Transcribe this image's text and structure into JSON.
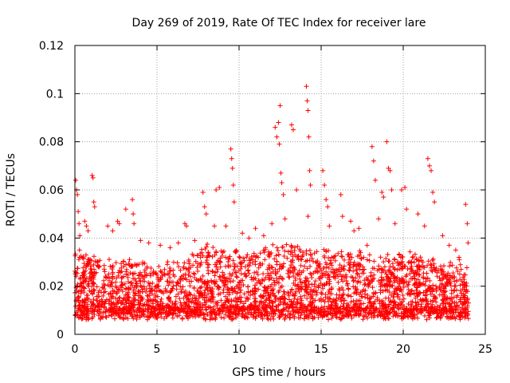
{
  "chart_data": {
    "type": "scatter",
    "title": "Day 269 of 2019, Rate Of TEC Index for receiver lare",
    "xlabel": "GPS time / hours",
    "ylabel": "ROTI / TECUs",
    "xlim": [
      0,
      25
    ],
    "ylim": [
      0,
      0.12
    ],
    "x_ticks": [
      0,
      5,
      10,
      15,
      20,
      25
    ],
    "x_tick_labels": [
      "0",
      "5",
      "10",
      "15",
      "20",
      "25"
    ],
    "y_ticks": [
      0,
      0.02,
      0.04,
      0.06,
      0.08,
      0.1,
      0.12
    ],
    "y_tick_labels": [
      "0",
      "0.02",
      "0.04",
      "0.06",
      "0.08",
      "0.1",
      "0.12"
    ],
    "grid": true,
    "marker": "+",
    "color": "#ff0000",
    "series": [
      {
        "name": "ROTI",
        "points": [
          [
            0.05,
            0.064
          ],
          [
            0.1,
            0.06
          ],
          [
            0.15,
            0.058
          ],
          [
            0.2,
            0.051
          ],
          [
            0.25,
            0.046
          ],
          [
            0.3,
            0.041
          ],
          [
            0.6,
            0.047
          ],
          [
            0.7,
            0.045
          ],
          [
            0.8,
            0.043
          ],
          [
            1.05,
            0.066
          ],
          [
            1.1,
            0.065
          ],
          [
            1.15,
            0.055
          ],
          [
            1.2,
            0.053
          ],
          [
            2.0,
            0.045
          ],
          [
            2.3,
            0.043
          ],
          [
            2.6,
            0.047
          ],
          [
            2.7,
            0.046
          ],
          [
            3.1,
            0.052
          ],
          [
            3.5,
            0.056
          ],
          [
            3.55,
            0.05
          ],
          [
            3.6,
            0.046
          ],
          [
            4.0,
            0.039
          ],
          [
            4.5,
            0.038
          ],
          [
            5.2,
            0.037
          ],
          [
            5.8,
            0.036
          ],
          [
            6.3,
            0.038
          ],
          [
            6.7,
            0.046
          ],
          [
            6.8,
            0.045
          ],
          [
            7.3,
            0.039
          ],
          [
            7.8,
            0.059
          ],
          [
            7.9,
            0.053
          ],
          [
            8.0,
            0.05
          ],
          [
            8.5,
            0.045
          ],
          [
            8.6,
            0.06
          ],
          [
            8.8,
            0.061
          ],
          [
            9.2,
            0.045
          ],
          [
            9.5,
            0.077
          ],
          [
            9.55,
            0.073
          ],
          [
            9.6,
            0.069
          ],
          [
            9.65,
            0.062
          ],
          [
            9.7,
            0.055
          ],
          [
            10.2,
            0.042
          ],
          [
            10.6,
            0.04
          ],
          [
            11.0,
            0.044
          ],
          [
            11.5,
            0.041
          ],
          [
            12.0,
            0.046
          ],
          [
            12.2,
            0.086
          ],
          [
            12.3,
            0.082
          ],
          [
            12.4,
            0.088
          ],
          [
            12.45,
            0.079
          ],
          [
            12.5,
            0.095
          ],
          [
            12.55,
            0.067
          ],
          [
            12.6,
            0.063
          ],
          [
            12.7,
            0.058
          ],
          [
            12.8,
            0.048
          ],
          [
            13.2,
            0.087
          ],
          [
            13.3,
            0.085
          ],
          [
            13.5,
            0.06
          ],
          [
            14.1,
            0.103
          ],
          [
            14.15,
            0.097
          ],
          [
            14.2,
            0.093
          ],
          [
            14.25,
            0.082
          ],
          [
            14.3,
            0.068
          ],
          [
            14.35,
            0.062
          ],
          [
            14.2,
            0.049
          ],
          [
            15.1,
            0.068
          ],
          [
            15.2,
            0.062
          ],
          [
            15.3,
            0.056
          ],
          [
            15.4,
            0.053
          ],
          [
            15.5,
            0.045
          ],
          [
            16.2,
            0.058
          ],
          [
            16.3,
            0.049
          ],
          [
            16.8,
            0.047
          ],
          [
            17.0,
            0.043
          ],
          [
            17.3,
            0.044
          ],
          [
            17.8,
            0.037
          ],
          [
            18.1,
            0.078
          ],
          [
            18.2,
            0.072
          ],
          [
            18.3,
            0.064
          ],
          [
            18.5,
            0.048
          ],
          [
            18.7,
            0.059
          ],
          [
            18.8,
            0.057
          ],
          [
            19.0,
            0.08
          ],
          [
            19.1,
            0.069
          ],
          [
            19.2,
            0.068
          ],
          [
            19.3,
            0.06
          ],
          [
            19.5,
            0.046
          ],
          [
            19.9,
            0.06
          ],
          [
            20.1,
            0.061
          ],
          [
            20.2,
            0.052
          ],
          [
            20.9,
            0.05
          ],
          [
            21.3,
            0.045
          ],
          [
            21.5,
            0.073
          ],
          [
            21.6,
            0.07
          ],
          [
            21.7,
            0.068
          ],
          [
            21.8,
            0.059
          ],
          [
            21.9,
            0.055
          ],
          [
            22.4,
            0.041
          ],
          [
            22.8,
            0.037
          ],
          [
            23.2,
            0.035
          ],
          [
            23.4,
            0.032
          ],
          [
            23.8,
            0.054
          ],
          [
            23.9,
            0.046
          ],
          [
            23.95,
            0.038
          ]
        ]
      }
    ],
    "dense_background": {
      "description_values": "bulk of points lie between 0.005 and 0.03 across the full 0-24 h range",
      "x_range": [
        0,
        24
      ],
      "y_min": 0.003,
      "y_max_profile": [
        [
          0,
          0.035
        ],
        [
          1,
          0.032
        ],
        [
          2,
          0.03
        ],
        [
          3,
          0.031
        ],
        [
          4,
          0.03
        ],
        [
          5,
          0.028
        ],
        [
          6,
          0.029
        ],
        [
          7,
          0.031
        ],
        [
          8,
          0.036
        ],
        [
          9,
          0.037
        ],
        [
          10,
          0.034
        ],
        [
          11,
          0.034
        ],
        [
          12,
          0.036
        ],
        [
          13,
          0.037
        ],
        [
          14,
          0.036
        ],
        [
          15,
          0.035
        ],
        [
          16,
          0.036
        ],
        [
          17,
          0.034
        ],
        [
          18,
          0.034
        ],
        [
          19,
          0.033
        ],
        [
          20,
          0.032
        ],
        [
          21,
          0.033
        ],
        [
          22,
          0.03
        ],
        [
          23,
          0.03
        ],
        [
          24,
          0.028
        ]
      ],
      "count": 3200
    }
  }
}
